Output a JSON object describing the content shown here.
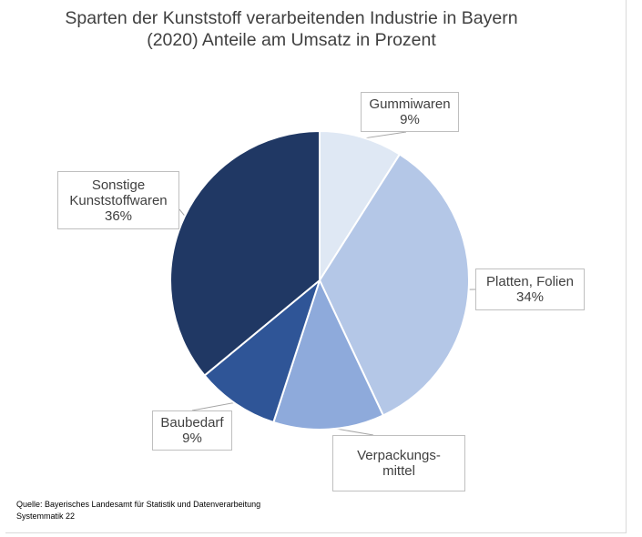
{
  "chart_data": {
    "type": "pie",
    "title_lines": [
      "Sparten der Kunststoff verarbeitenden Industrie in Bayern",
      "(2020) Anteile am Umsatz in Prozent"
    ],
    "slices": [
      {
        "label": "Gummiwaren",
        "value": 9,
        "value_label": "9%",
        "color": "#dfe8f4"
      },
      {
        "label": "Platten, Folien",
        "value": 34,
        "value_label": "34%",
        "color": "#b4c7e7"
      },
      {
        "label": "Verpackungs-\nmittel",
        "value": 12,
        "value_label": "",
        "color": "#8eaadb"
      },
      {
        "label": "Baubedarf",
        "value": 9,
        "value_label": "9%",
        "color": "#2f5597"
      },
      {
        "label": "Sonstige\nKunststoffwaren",
        "value": 36,
        "value_label": "36%",
        "color": "#203864"
      }
    ],
    "start_angle_deg": 0,
    "direction": "clockwise"
  },
  "source": {
    "line1": "Quelle:  Bayerisches Landesamt für Statistik und Datenverarbeitung",
    "line2": "Systemmatik 22"
  }
}
